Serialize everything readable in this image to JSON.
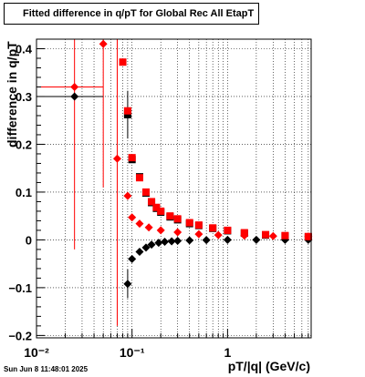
{
  "chart_data": {
    "type": "scatter",
    "title": "Fitted difference in q/pT for Global Rec All EtapT",
    "xlabel": "pT/|q| (GeV/c)",
    "ylabel": "difference in q/pT",
    "xscale": "log",
    "xlim": [
      0.01,
      7.5
    ],
    "ylim": [
      -0.205,
      0.42
    ],
    "xtick_labels": [
      "10⁻²",
      "10⁻¹",
      "1"
    ],
    "ytick_labels": [
      "−0.2",
      "−0.1",
      "0",
      "0.1",
      "0.2",
      "0.3",
      "0.4"
    ],
    "grid": true,
    "series": [
      {
        "color": "#000000",
        "marker": "diamond",
        "points": [
          [
            0.025,
            0.3
          ],
          [
            0.09,
            -0.092
          ],
          [
            0.1,
            -0.04
          ],
          [
            0.12,
            -0.025
          ],
          [
            0.14,
            -0.016
          ],
          [
            0.16,
            -0.01
          ],
          [
            0.19,
            -0.006
          ],
          [
            0.22,
            -0.004
          ],
          [
            0.26,
            -0.003
          ],
          [
            0.3,
            -0.002
          ],
          [
            0.4,
            -0.001
          ],
          [
            0.6,
            -0.0005
          ],
          [
            1.0,
            0.0
          ],
          [
            2.0,
            0.0
          ],
          [
            4.0,
            0.0
          ],
          [
            7.0,
            0.0
          ]
        ]
      },
      {
        "color": "#000000",
        "marker": "square",
        "points": [
          [
            0.09,
            0.262
          ],
          [
            0.1,
            0.168
          ],
          [
            0.12,
            0.132
          ],
          [
            0.14,
            0.098
          ],
          [
            0.16,
            0.078
          ],
          [
            0.18,
            0.066
          ],
          [
            0.2,
            0.058
          ],
          [
            0.25,
            0.048
          ],
          [
            0.3,
            0.042
          ],
          [
            0.4,
            0.034
          ],
          [
            0.5,
            0.03
          ],
          [
            0.7,
            0.024
          ],
          [
            1.0,
            0.019
          ],
          [
            1.5,
            0.014
          ],
          [
            2.5,
            0.01
          ],
          [
            4.0,
            0.008
          ],
          [
            7.0,
            0.006
          ]
        ]
      },
      {
        "color": "#ff0000",
        "marker": "diamond",
        "points": [
          [
            0.025,
            0.32
          ],
          [
            0.05,
            0.41
          ],
          [
            0.07,
            0.17
          ],
          [
            0.09,
            0.092
          ],
          [
            0.1,
            0.047
          ],
          [
            0.12,
            0.034
          ],
          [
            0.15,
            0.026
          ],
          [
            0.2,
            0.02
          ],
          [
            0.3,
            0.016
          ],
          [
            0.5,
            0.012
          ],
          [
            0.8,
            0.01
          ],
          [
            1.5,
            0.009
          ],
          [
            3.0,
            0.008
          ],
          [
            7.0,
            0.007
          ]
        ]
      },
      {
        "color": "#ff0000",
        "marker": "square",
        "points": [
          [
            0.08,
            0.372
          ],
          [
            0.09,
            0.27
          ],
          [
            0.1,
            0.172
          ],
          [
            0.12,
            0.13
          ],
          [
            0.14,
            0.1
          ],
          [
            0.16,
            0.08
          ],
          [
            0.18,
            0.068
          ],
          [
            0.2,
            0.06
          ],
          [
            0.25,
            0.05
          ],
          [
            0.3,
            0.044
          ],
          [
            0.4,
            0.036
          ],
          [
            0.5,
            0.031
          ],
          [
            0.7,
            0.025
          ],
          [
            1.0,
            0.02
          ],
          [
            1.5,
            0.015
          ],
          [
            2.5,
            0.011
          ],
          [
            4.0,
            0.009
          ],
          [
            7.0,
            0.007
          ]
        ]
      }
    ],
    "error_bars": [
      {
        "color": "#ff0000",
        "x": 0.025,
        "y": 0.32,
        "xerr": [
          0.01,
          0.05
        ],
        "yerr": 0.34
      },
      {
        "color": "#ff0000",
        "x": 0.05,
        "y": 0.41,
        "xerr": [
          0.047,
          0.053
        ],
        "yerr": 0.3
      },
      {
        "color": "#ff0000",
        "x": 0.07,
        "y": 0.17,
        "xerr": [
          0.066,
          0.074
        ],
        "yerr": 0.35
      },
      {
        "color": "#000000",
        "x": 0.025,
        "y": 0.3,
        "xerr": [
          0.01,
          0.05
        ],
        "yerr": 0.0
      },
      {
        "color": "#000000",
        "x": 0.09,
        "y": -0.092,
        "xerr": [
          0.087,
          0.093
        ],
        "yerr": 0.03
      },
      {
        "color": "#000000",
        "x": 0.09,
        "y": 0.262,
        "xerr": [
          0.087,
          0.093
        ],
        "yerr": 0.05
      }
    ],
    "timestamp": "Sun Jun  8 11:48:01 2025"
  }
}
